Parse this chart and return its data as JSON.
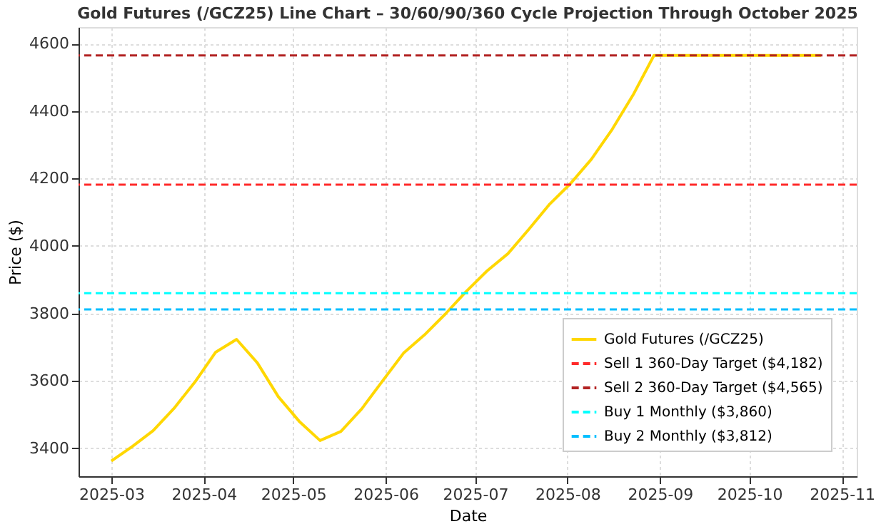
{
  "chart_data": {
    "type": "line",
    "title": "Gold Futures (/GCZ25) Line Chart – 30/60/90/360 Cycle Projection Through October 2025",
    "xlabel": "Date",
    "ylabel": "Price ($)",
    "x": [
      "2025-03-01",
      "2025-03-08",
      "2025-03-15",
      "2025-03-22",
      "2025-03-29",
      "2025-04-05",
      "2025-04-12",
      "2025-04-19",
      "2025-04-26",
      "2025-05-03",
      "2025-05-10",
      "2025-05-17",
      "2025-05-24",
      "2025-05-31",
      "2025-06-07",
      "2025-06-14",
      "2025-06-21",
      "2025-06-28",
      "2025-07-05",
      "2025-07-12",
      "2025-07-19",
      "2025-07-26",
      "2025-08-02",
      "2025-08-09",
      "2025-08-16",
      "2025-08-23",
      "2025-08-30",
      "2025-09-06",
      "2025-09-13",
      "2025-09-20",
      "2025-09-27",
      "2025-10-04",
      "2025-10-11",
      "2025-10-18",
      "2025-10-25"
    ],
    "series": [
      {
        "name": "Gold Futures (/GCZ25)",
        "color": "#ffd700",
        "values": [
          3362,
          3405,
          3452,
          3518,
          3596,
          3685,
          3723,
          3653,
          3553,
          3480,
          3423,
          3450,
          3517,
          3600,
          3682,
          3736,
          3798,
          3865,
          3926,
          3977,
          4049,
          4124,
          4185,
          4257,
          4346,
          4448,
          4565,
          4565,
          4565,
          4565,
          4565,
          4565,
          4565,
          4565,
          4565
        ]
      }
    ],
    "ref_lines": [
      {
        "axis": "y",
        "value": 4182,
        "label": "Sell 1 360-Day Target ($4,182)",
        "color": "#ff2a2a",
        "line_style": "dashed"
      },
      {
        "axis": "y",
        "value": 4565,
        "label": "Sell 2 360-Day Target ($4,565)",
        "color": "#b22222",
        "line_style": "dashed"
      },
      {
        "axis": "y",
        "value": 3860,
        "label": "Buy 1 Monthly ($3,860)",
        "color": "#00ffff",
        "line_style": "dashed"
      },
      {
        "axis": "y",
        "value": 3812,
        "label": "Buy 2 Monthly ($3,812)",
        "color": "#00bfff",
        "line_style": "dashed"
      }
    ],
    "xlim": [
      "2025-02-18",
      "2025-11-06"
    ],
    "xticks": [
      {
        "value": "2025-03-01",
        "label": "2025-03"
      },
      {
        "value": "2025-04-01",
        "label": "2025-04"
      },
      {
        "value": "2025-05-01",
        "label": "2025-05"
      },
      {
        "value": "2025-06-01",
        "label": "2025-06"
      },
      {
        "value": "2025-07-01",
        "label": "2025-07"
      },
      {
        "value": "2025-08-01",
        "label": "2025-08"
      },
      {
        "value": "2025-09-01",
        "label": "2025-09"
      },
      {
        "value": "2025-10-01",
        "label": "2025-10"
      },
      {
        "value": "2025-11-01",
        "label": "2025-11"
      }
    ],
    "ylim": [
      3317,
      4649
    ],
    "yticks": [
      3400,
      3600,
      3800,
      4000,
      4200,
      4400,
      4600
    ],
    "grid": true,
    "legend": "bottom right",
    "line_style": "solid",
    "marker": "none"
  }
}
